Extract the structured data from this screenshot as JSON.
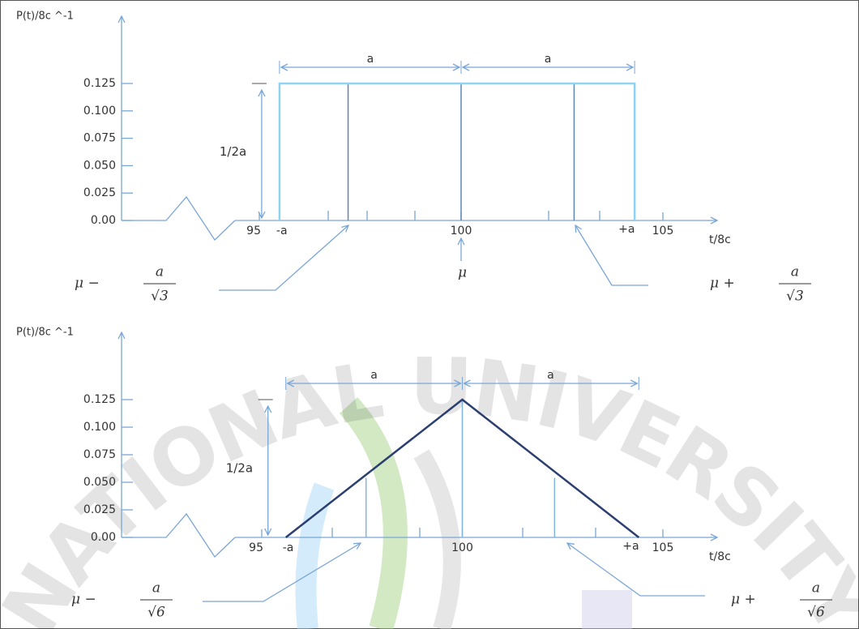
{
  "watermark": "NATIONAL UNIVERSITY",
  "chart_data": [
    {
      "type": "line",
      "y_label": "P(t)/8c ^-1",
      "x_label": "t/8c",
      "xlim": [
        95,
        105
      ],
      "ylim": [
        0,
        0.125
      ],
      "xticks": [
        95,
        100,
        105
      ],
      "yticks": [
        {
          "value": 0,
          "label": "0.00"
        },
        0.025,
        {
          "value": 0.05,
          "label": "0.050"
        },
        0.075,
        {
          "value": 0.1,
          "label": "0.100"
        },
        0.125
      ],
      "series": [
        {
          "color": "#8ed4f2",
          "x": [
            95.5,
            95.5,
            104.3,
            104.3
          ],
          "values": [
            0,
            0.125,
            0.125,
            0
          ]
        }
      ],
      "vlines": {
        "color": "#5f86b3",
        "x": [
          97.2,
          100,
          102.8
        ],
        "values": [
          0.125,
          0.125,
          0.125
        ]
      },
      "minus_a_label": "-a",
      "plus_a_label": "+a",
      "half_width_labels": [
        "a",
        "a"
      ],
      "height_label": "1/2a",
      "mean_label": "μ",
      "left_formula": {
        "prefix": "μ −",
        "numerator": "a",
        "denominator": "√3"
      },
      "right_formula": {
        "prefix": "μ +",
        "numerator": "a",
        "denominator": "√3"
      }
    },
    {
      "type": "line",
      "y_label": "P(t)/8c ^-1",
      "x_label": "t/8c",
      "xlim": [
        95,
        105
      ],
      "ylim": [
        0,
        0.125
      ],
      "xticks": [
        95,
        100,
        105
      ],
      "yticks": [
        {
          "value": 0,
          "label": "0.00"
        },
        0.025,
        {
          "value": 0.05,
          "label": "0.050"
        },
        0.075,
        {
          "value": 0.1,
          "label": "0.100"
        },
        0.125
      ],
      "series": [
        {
          "color": "#2b3f70",
          "x": [
            95.6,
            100,
            104.4
          ],
          "values": [
            0,
            0.125,
            0
          ]
        }
      ],
      "vlines": {
        "color": "#7fb4de",
        "x": [
          97.6,
          100,
          102.3
        ],
        "values": [
          0.054,
          0.125,
          0.054
        ]
      },
      "minus_a_label": "-a",
      "plus_a_label": "+a",
      "half_width_labels": [
        "a",
        "a"
      ],
      "height_label": "1/2a",
      "left_formula": {
        "prefix": "μ −",
        "numerator": "a",
        "denominator": "√6"
      },
      "right_formula": {
        "prefix": "μ +",
        "numerator": "a",
        "denominator": "√6"
      }
    }
  ]
}
